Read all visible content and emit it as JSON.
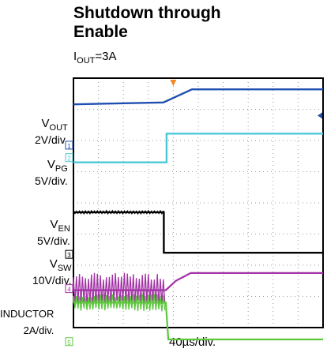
{
  "chart_data": {
    "type": "line",
    "title_line1": "Shutdown through",
    "title_line2": "Enable",
    "condition": {
      "symbol": "I",
      "sub": "OUT",
      "value": "=3A"
    },
    "timebase": "40µs/div.",
    "divisions": {
      "x": 10,
      "y": 8
    },
    "channels": [
      {
        "id": "vout",
        "symbol": "V",
        "sub": "OUT",
        "scale": "2V/div.",
        "marker": "1",
        "color": "#1f4fb0",
        "trace": [
          [
            0,
            0.84
          ],
          [
            3.6,
            0.78
          ],
          [
            4.75,
            0.36
          ],
          [
            10,
            0.36
          ]
        ]
      },
      {
        "id": "vpg",
        "symbol": "V",
        "sub": "PG",
        "scale": "5V/div.",
        "marker": "2",
        "color": "#4cc7d8",
        "trace": [
          [
            0,
            2.7
          ],
          [
            3.73,
            2.7
          ],
          [
            3.73,
            1.78
          ],
          [
            10,
            1.78
          ]
        ]
      },
      {
        "id": "ven",
        "symbol": "V",
        "sub": "EN",
        "scale": "5V/div.",
        "marker": "3",
        "color": "#000000",
        "trace": [
          [
            0,
            4.3
          ],
          [
            3.62,
            4.3
          ],
          [
            3.62,
            5.6
          ],
          [
            10,
            5.6
          ]
        ]
      },
      {
        "id": "vsw",
        "symbol": "V",
        "sub": "SW",
        "scale": "10V/div.",
        "marker": "4",
        "color": "#a232a6",
        "trace": [
          [
            0,
            6.8
          ],
          [
            3.7,
            6.8
          ],
          [
            4.1,
            6.5
          ],
          [
            4.7,
            6.25
          ],
          [
            10,
            6.25
          ]
        ]
      },
      {
        "id": "inductor",
        "symbol": "INDUCTOR",
        "sub": "",
        "scale": "2A/div.",
        "marker": "5",
        "color": "#5cc83c",
        "trace": [
          [
            0,
            7.2
          ],
          [
            3.7,
            7.2
          ],
          [
            3.8,
            8.38
          ],
          [
            10,
            8.38
          ]
        ]
      }
    ]
  }
}
